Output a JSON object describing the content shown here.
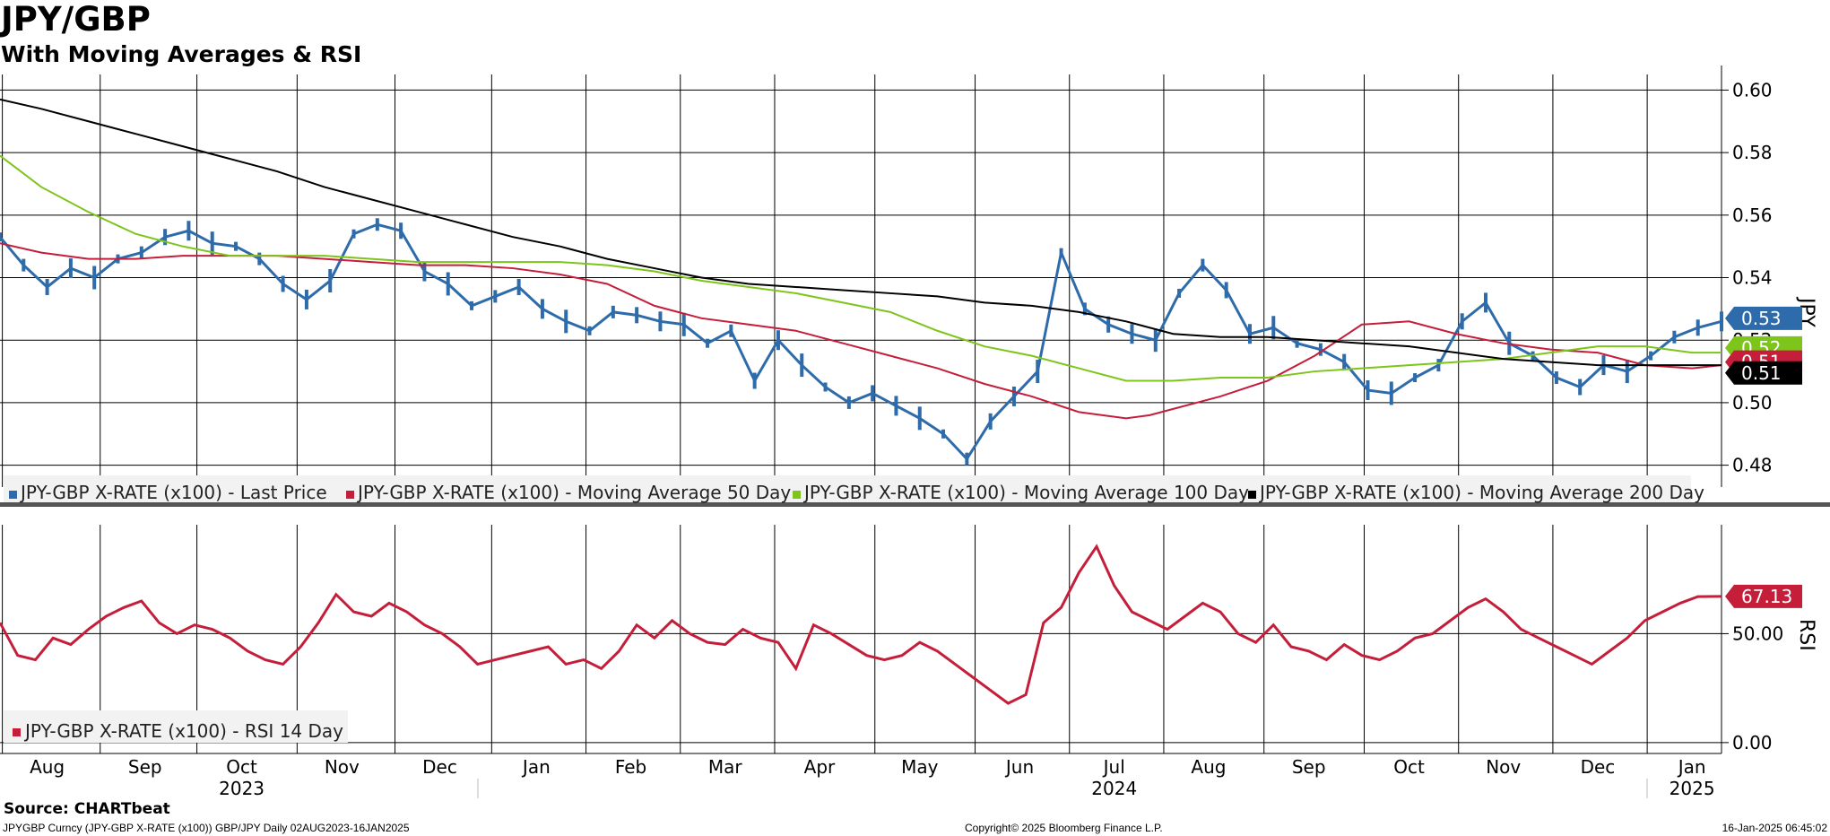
{
  "header": {
    "title": "JPY/GBP",
    "subtitle": "With Moving Averages & RSI"
  },
  "footer": {
    "source": "Source: CHARTbeat",
    "left_note": "JPYGBP Curncy (JPY-GBP X-RATE (x100)) GBP/JPY  Daily 02AUG2023-16JAN2025",
    "copyright": "Copyright© 2025 Bloomberg Finance L.P.",
    "timestamp": "16-Jan-2025 06:45:02"
  },
  "colors": {
    "price": "#2e6bab",
    "ma50": "#c41e3a",
    "ma100": "#7dc51a",
    "ma200": "#000000",
    "rsi": "#c41e3a",
    "grid": "#000000"
  },
  "chart_data": [
    {
      "type": "line",
      "title": "JPY/GBP",
      "ylabel": "JPY",
      "ylim": [
        0.473,
        0.605
      ],
      "yticks": [
        0.48,
        0.5,
        0.52,
        0.54,
        0.56,
        0.58,
        0.6
      ],
      "ytick_labels": [
        "0.48",
        "0.50",
        "0.52",
        "0.54",
        "0.56",
        "0.58",
        "0.60"
      ],
      "x_range": [
        2023.585,
        2025.045
      ],
      "months": [
        "Aug",
        "Sep",
        "Oct",
        "Nov",
        "Dec",
        "Jan",
        "Feb",
        "Mar",
        "Apr",
        "May",
        "Jun",
        "Jul",
        "Aug",
        "Sep",
        "Oct",
        "Nov",
        "Dec",
        "Jan"
      ],
      "month_pos": [
        2023.625,
        2023.708,
        2023.79,
        2023.875,
        2023.958,
        2024.04,
        2024.12,
        2024.2,
        2024.28,
        2024.365,
        2024.45,
        2024.53,
        2024.61,
        2024.695,
        2024.78,
        2024.86,
        2024.94,
        2025.02
      ],
      "years": [
        "2023",
        "2024",
        "2025"
      ],
      "year_pos": [
        2023.79,
        2024.53,
        2025.02
      ],
      "legend_position": "bottom-left",
      "grid": true,
      "series": [
        {
          "name": "JPY-GBP X-RATE (x100) - Last Price",
          "legend": "JPY-GBP X-RATE (x100) - Last Price",
          "style": "bars",
          "x": [
            2023.585,
            2023.605,
            2023.625,
            2023.645,
            2023.665,
            2023.685,
            2023.705,
            2023.725,
            2023.745,
            2023.765,
            2023.785,
            2023.805,
            2023.825,
            2023.845,
            2023.865,
            2023.885,
            2023.905,
            2023.925,
            2023.945,
            2023.965,
            2023.985,
            2024.005,
            2024.025,
            2024.045,
            2024.065,
            2024.085,
            2024.105,
            2024.125,
            2024.145,
            2024.165,
            2024.185,
            2024.205,
            2024.225,
            2024.245,
            2024.265,
            2024.285,
            2024.305,
            2024.325,
            2024.345,
            2024.365,
            2024.385,
            2024.405,
            2024.425,
            2024.445,
            2024.465,
            2024.485,
            2024.505,
            2024.525,
            2024.545,
            2024.565,
            2024.585,
            2024.605,
            2024.625,
            2024.645,
            2024.665,
            2024.685,
            2024.705,
            2024.725,
            2024.745,
            2024.765,
            2024.785,
            2024.805,
            2024.825,
            2024.845,
            2024.865,
            2024.885,
            2024.905,
            2024.925,
            2024.945,
            2024.965,
            2024.985,
            2025.005,
            2025.025,
            2025.045
          ],
          "values": [
            0.553,
            0.544,
            0.537,
            0.543,
            0.54,
            0.546,
            0.548,
            0.553,
            0.555,
            0.551,
            0.55,
            0.546,
            0.538,
            0.533,
            0.539,
            0.554,
            0.557,
            0.555,
            0.542,
            0.538,
            0.531,
            0.534,
            0.537,
            0.53,
            0.526,
            0.523,
            0.529,
            0.528,
            0.526,
            0.525,
            0.519,
            0.523,
            0.507,
            0.52,
            0.512,
            0.505,
            0.5,
            0.503,
            0.499,
            0.495,
            0.49,
            0.482,
            0.494,
            0.502,
            0.51,
            0.548,
            0.53,
            0.525,
            0.522,
            0.52,
            0.535,
            0.544,
            0.536,
            0.522,
            0.524,
            0.519,
            0.517,
            0.513,
            0.504,
            0.503,
            0.508,
            0.512,
            0.526,
            0.532,
            0.519,
            0.515,
            0.508,
            0.505,
            0.512,
            0.51,
            0.515,
            0.521,
            0.524,
            0.526
          ]
        },
        {
          "name": "JPY-GBP X-RATE (x100) - Moving Average 50 Day",
          "legend": "JPY-GBP X-RATE (x100) - Moving Average 50 Day",
          "x": [
            2023.585,
            2023.62,
            2023.66,
            2023.7,
            2023.74,
            2023.78,
            2023.82,
            2023.86,
            2023.9,
            2023.94,
            2023.98,
            2024.02,
            2024.06,
            2024.1,
            2024.14,
            2024.18,
            2024.22,
            2024.26,
            2024.3,
            2024.34,
            2024.38,
            2024.42,
            2024.46,
            2024.5,
            2024.54,
            2024.56,
            2024.58,
            2024.62,
            2024.66,
            2024.7,
            2024.74,
            2024.78,
            2024.82,
            2024.86,
            2024.9,
            2024.94,
            2024.98,
            2025.02,
            2025.045
          ],
          "values": [
            0.551,
            0.548,
            0.546,
            0.546,
            0.547,
            0.547,
            0.547,
            0.546,
            0.545,
            0.544,
            0.544,
            0.543,
            0.541,
            0.538,
            0.531,
            0.527,
            0.525,
            0.523,
            0.519,
            0.515,
            0.511,
            0.506,
            0.502,
            0.497,
            0.495,
            0.496,
            0.498,
            0.502,
            0.507,
            0.515,
            0.525,
            0.526,
            0.522,
            0.519,
            0.517,
            0.516,
            0.512,
            0.511,
            0.512
          ]
        },
        {
          "name": "JPY-GBP X-RATE (x100) - Moving Average 100 Day",
          "legend": "JPY-GBP X-RATE (x100) - Moving Average 100 Day",
          "x": [
            2023.585,
            2023.62,
            2023.66,
            2023.7,
            2023.74,
            2023.78,
            2023.82,
            2023.86,
            2023.9,
            2023.94,
            2023.98,
            2024.02,
            2024.06,
            2024.1,
            2024.14,
            2024.18,
            2024.22,
            2024.26,
            2024.3,
            2024.34,
            2024.38,
            2024.42,
            2024.46,
            2024.5,
            2024.54,
            2024.58,
            2024.62,
            2024.66,
            2024.7,
            2024.74,
            2024.78,
            2024.82,
            2024.86,
            2024.9,
            2024.94,
            2024.98,
            2025.02,
            2025.045
          ],
          "values": [
            0.579,
            0.569,
            0.561,
            0.554,
            0.55,
            0.547,
            0.547,
            0.547,
            0.546,
            0.545,
            0.545,
            0.545,
            0.545,
            0.544,
            0.542,
            0.539,
            0.537,
            0.535,
            0.532,
            0.529,
            0.523,
            0.518,
            0.515,
            0.511,
            0.507,
            0.507,
            0.508,
            0.508,
            0.51,
            0.511,
            0.512,
            0.513,
            0.514,
            0.516,
            0.518,
            0.518,
            0.516,
            0.516
          ]
        },
        {
          "name": "JPY-GBP X-RATE (x100) - Moving Average 200 Day",
          "legend": "JPY-GBP X-RATE (x100) - Moving Average 200 Day",
          "x": [
            2023.585,
            2023.62,
            2023.66,
            2023.7,
            2023.74,
            2023.78,
            2023.82,
            2023.86,
            2023.9,
            2023.94,
            2023.98,
            2024.02,
            2024.06,
            2024.1,
            2024.14,
            2024.18,
            2024.22,
            2024.26,
            2024.3,
            2024.34,
            2024.38,
            2024.42,
            2024.46,
            2024.5,
            2024.54,
            2024.58,
            2024.62,
            2024.66,
            2024.7,
            2024.74,
            2024.78,
            2024.82,
            2024.86,
            2024.9,
            2024.94,
            2024.98,
            2025.02,
            2025.045
          ],
          "values": [
            0.597,
            0.594,
            0.59,
            0.586,
            0.582,
            0.578,
            0.574,
            0.569,
            0.565,
            0.561,
            0.557,
            0.553,
            0.55,
            0.546,
            0.543,
            0.54,
            0.538,
            0.537,
            0.536,
            0.535,
            0.534,
            0.532,
            0.531,
            0.529,
            0.526,
            0.522,
            0.521,
            0.521,
            0.52,
            0.519,
            0.518,
            0.516,
            0.514,
            0.513,
            0.512,
            0.512,
            0.512,
            0.512
          ]
        }
      ],
      "value_tags": [
        {
          "label": "0.53",
          "value": 0.527,
          "color": "#2e6bab"
        },
        {
          "label": "0.52",
          "value": 0.5175,
          "color": "#7dc51a"
        },
        {
          "label": "0.51",
          "value": 0.513,
          "color": "#c41e3a"
        },
        {
          "label": "0.51",
          "value": 0.5095,
          "color": "#000000"
        }
      ]
    },
    {
      "type": "line",
      "ylabel": "RSI",
      "ylim": [
        -5,
        100
      ],
      "yticks": [
        0,
        50
      ],
      "ytick_labels": [
        "0.00",
        "50.00"
      ],
      "legend_position": "bottom-left",
      "series": [
        {
          "name": "JPY-GBP X-RATE (x100) - RSI 14 Day",
          "legend": "JPY-GBP X-RATE (x100) - RSI 14 Day",
          "x": [
            2023.585,
            2023.6,
            2023.615,
            2023.63,
            2023.645,
            2023.66,
            2023.675,
            2023.69,
            2023.705,
            2023.72,
            2023.735,
            2023.75,
            2023.765,
            2023.78,
            2023.795,
            2023.81,
            2023.825,
            2023.84,
            2023.855,
            2023.87,
            2023.885,
            2023.9,
            2023.915,
            2023.93,
            2023.945,
            2023.96,
            2023.975,
            2023.99,
            2024.005,
            2024.02,
            2024.035,
            2024.05,
            2024.065,
            2024.08,
            2024.095,
            2024.11,
            2024.125,
            2024.14,
            2024.155,
            2024.17,
            2024.185,
            2024.2,
            2024.215,
            2024.23,
            2024.245,
            2024.26,
            2024.275,
            2024.29,
            2024.305,
            2024.32,
            2024.335,
            2024.35,
            2024.365,
            2024.38,
            2024.395,
            2024.41,
            2024.425,
            2024.44,
            2024.455,
            2024.47,
            2024.485,
            2024.5,
            2024.515,
            2024.53,
            2024.545,
            2024.56,
            2024.575,
            2024.59,
            2024.605,
            2024.62,
            2024.635,
            2024.65,
            2024.665,
            2024.68,
            2024.695,
            2024.71,
            2024.725,
            2024.74,
            2024.755,
            2024.77,
            2024.785,
            2024.8,
            2024.815,
            2024.83,
            2024.845,
            2024.86,
            2024.875,
            2024.89,
            2024.905,
            2024.92,
            2024.935,
            2024.95,
            2024.965,
            2024.98,
            2024.995,
            2025.01,
            2025.025,
            2025.045
          ],
          "values": [
            55,
            40,
            38,
            48,
            45,
            52,
            58,
            62,
            65,
            55,
            50,
            54,
            52,
            48,
            42,
            38,
            36,
            44,
            55,
            68,
            60,
            58,
            64,
            60,
            54,
            50,
            44,
            36,
            38,
            40,
            42,
            44,
            36,
            38,
            34,
            42,
            54,
            48,
            56,
            50,
            46,
            45,
            52,
            48,
            46,
            34,
            54,
            50,
            45,
            40,
            38,
            40,
            46,
            42,
            36,
            30,
            24,
            18,
            22,
            55,
            62,
            78,
            90,
            72,
            60,
            56,
            52,
            58,
            64,
            60,
            50,
            46,
            54,
            44,
            42,
            38,
            45,
            40,
            38,
            42,
            48,
            50,
            56,
            62,
            66,
            60,
            52,
            48,
            44,
            40,
            36,
            42,
            48,
            56,
            60,
            64,
            67,
            67.13
          ]
        }
      ],
      "value_tags": [
        {
          "label": "67.13",
          "value": 67.13,
          "color": "#c41e3a"
        }
      ]
    }
  ]
}
